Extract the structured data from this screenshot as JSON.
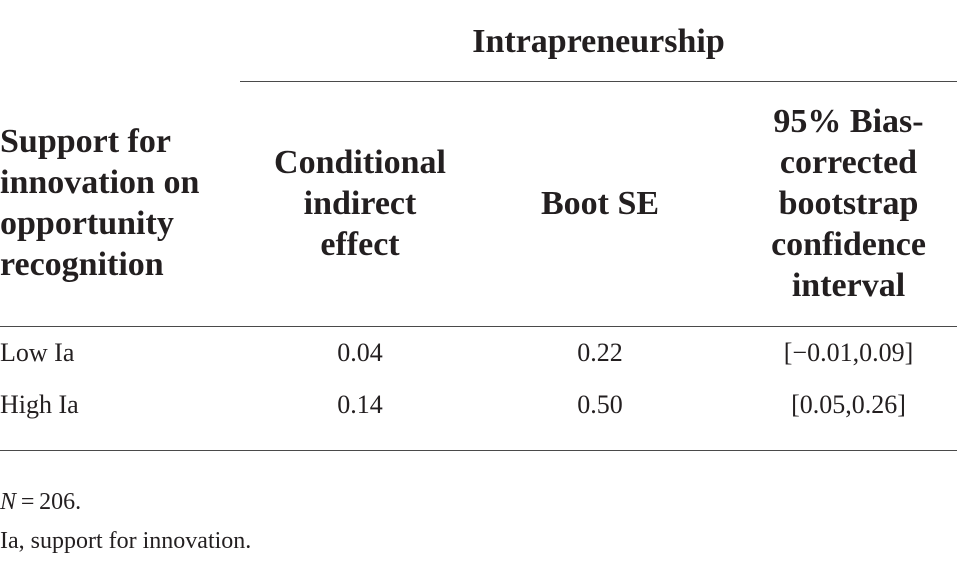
{
  "table": {
    "group_header": "Intrapreneurship",
    "row_header_lines": [
      "Support for",
      "innovation on",
      "opportunity",
      "recognition"
    ],
    "columns": [
      {
        "lines": [
          "Conditional",
          "indirect",
          "effect"
        ]
      },
      {
        "lines": [
          "Boot SE"
        ]
      },
      {
        "lines": [
          "95% Bias-",
          "corrected",
          "bootstrap",
          "confidence",
          "interval"
        ]
      }
    ],
    "rows": [
      {
        "label": "Low Ia",
        "effect": "0.04",
        "boot_se": "0.22",
        "ci": "[−0.01,0.09]"
      },
      {
        "label": "High Ia",
        "effect": "0.14",
        "boot_se": "0.50",
        "ci": "[0.05,0.26]"
      }
    ]
  },
  "notes": {
    "n_symbol": "N",
    "n_value": " = 206.",
    "abbreviation": "Ia, support for innovation."
  }
}
